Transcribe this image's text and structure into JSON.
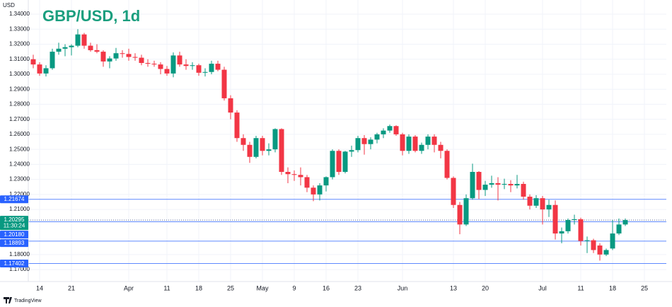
{
  "chart_data": {
    "type": "candlestick",
    "title": "GBP/USD, 1d",
    "y_label": "USD",
    "source": "TradingView",
    "up_color": "#089981",
    "down_color": "#f23645",
    "level_color": "#2962ff",
    "grid": true,
    "ylim": [
      1.1625,
      1.348
    ],
    "yticks": [
      {
        "value": 1.34,
        "label": "1.34000"
      },
      {
        "value": 1.33,
        "label": "1.33000"
      },
      {
        "value": 1.32,
        "label": "1.32000"
      },
      {
        "value": 1.31,
        "label": "1.31000"
      },
      {
        "value": 1.3,
        "label": "1.30000"
      },
      {
        "value": 1.29,
        "label": "1.29000"
      },
      {
        "value": 1.28,
        "label": "1.28000"
      },
      {
        "value": 1.27,
        "label": "1.27000"
      },
      {
        "value": 1.26,
        "label": "1.26000"
      },
      {
        "value": 1.25,
        "label": "1.25000"
      },
      {
        "value": 1.24,
        "label": "1.24000"
      },
      {
        "value": 1.23,
        "label": "1.23000"
      },
      {
        "value": 1.22,
        "label": "1.22000"
      },
      {
        "value": 1.21,
        "label": "1.21000"
      },
      {
        "value": 1.18,
        "label": "1.18000"
      },
      {
        "value": 1.17,
        "label": "1.17000"
      }
    ],
    "levels": [
      {
        "value": 1.21674,
        "label": "1.21674"
      },
      {
        "value": 1.2018,
        "label": "1.20180"
      },
      {
        "value": 1.18893,
        "label": "1.18893"
      },
      {
        "value": 1.17402,
        "label": "1.17402"
      }
    ],
    "current_price": {
      "value": 1.20295,
      "label": "1.20295",
      "time": "11:30:24"
    },
    "categories": [
      null,
      "14",
      null,
      null,
      null,
      null,
      "21",
      null,
      null,
      null,
      null,
      null,
      null,
      null,
      null,
      "Apr",
      null,
      null,
      null,
      null,
      null,
      "11",
      null,
      null,
      null,
      null,
      "18",
      null,
      null,
      null,
      null,
      "25",
      null,
      null,
      null,
      null,
      "May",
      null,
      null,
      null,
      null,
      "9",
      null,
      null,
      null,
      null,
      "16",
      null,
      null,
      null,
      null,
      "23",
      null,
      null,
      null,
      null,
      null,
      null,
      "Jun",
      null,
      null,
      null,
      null,
      null,
      null,
      null,
      "13",
      null,
      null,
      null,
      null,
      "20",
      null,
      null,
      null,
      null,
      null,
      null,
      null,
      null,
      "Jul",
      null,
      null,
      null,
      null,
      null,
      "11",
      null,
      null,
      null,
      null,
      "18",
      null,
      null,
      null,
      null,
      "25"
    ],
    "ohlc": [
      [
        1.31,
        1.313,
        1.304,
        1.3065
      ],
      [
        1.3065,
        1.308,
        1.299,
        1.3005
      ],
      [
        1.3005,
        1.306,
        1.2985,
        1.304
      ],
      [
        1.304,
        1.317,
        1.303,
        1.315
      ],
      [
        1.315,
        1.321,
        1.313,
        1.317
      ],
      [
        1.317,
        1.32,
        1.312,
        1.318
      ],
      [
        1.318,
        1.32,
        1.3125,
        1.319
      ],
      [
        1.319,
        1.33,
        1.318,
        1.3265
      ],
      [
        1.3265,
        1.3275,
        1.317,
        1.319
      ],
      [
        1.319,
        1.321,
        1.315,
        1.316
      ],
      [
        1.316,
        1.32,
        1.314,
        1.315
      ],
      [
        1.315,
        1.316,
        1.305,
        1.3085
      ],
      [
        1.3085,
        1.312,
        1.304,
        1.3105
      ],
      [
        1.3105,
        1.3175,
        1.309,
        1.314
      ],
      [
        1.314,
        1.316,
        1.311,
        1.3135
      ],
      [
        1.3135,
        1.317,
        1.309,
        1.3115
      ],
      [
        1.3115,
        1.314,
        1.309,
        1.311
      ],
      [
        1.311,
        1.313,
        1.306,
        1.3075
      ],
      [
        1.3075,
        1.31,
        1.305,
        1.307
      ],
      [
        1.307,
        1.309,
        1.305,
        1.3065
      ],
      [
        1.3065,
        1.308,
        1.3,
        1.3035
      ],
      [
        1.3035,
        1.3055,
        1.299,
        1.3005
      ],
      [
        1.3005,
        1.3145,
        1.298,
        1.3125
      ],
      [
        1.3125,
        1.315,
        1.305,
        1.3065
      ],
      [
        1.3065,
        1.31,
        1.303,
        1.3055
      ],
      [
        1.3055,
        1.308,
        1.303,
        1.306
      ],
      [
        1.306,
        1.307,
        1.299,
        1.301
      ],
      [
        1.301,
        1.304,
        1.2985,
        1.3015
      ],
      [
        1.3015,
        1.309,
        1.3,
        1.307
      ],
      [
        1.307,
        1.309,
        1.302,
        1.303
      ],
      [
        1.303,
        1.305,
        1.2825,
        1.284
      ],
      [
        1.284,
        1.286,
        1.27,
        1.2745
      ],
      [
        1.2745,
        1.276,
        1.255,
        1.2575
      ],
      [
        1.2575,
        1.26,
        1.249,
        1.253
      ],
      [
        1.253,
        1.255,
        1.241,
        1.245
      ],
      [
        1.245,
        1.259,
        1.244,
        1.2575
      ],
      [
        1.2575,
        1.259,
        1.246,
        1.249
      ],
      [
        1.249,
        1.254,
        1.246,
        1.25
      ],
      [
        1.25,
        1.264,
        1.248,
        1.2635
      ],
      [
        1.2635,
        1.264,
        1.233,
        1.235
      ],
      [
        1.235,
        1.238,
        1.2275,
        1.2335
      ],
      [
        1.2335,
        1.236,
        1.229,
        1.233
      ],
      [
        1.233,
        1.238,
        1.226,
        1.2315
      ],
      [
        1.2315,
        1.233,
        1.2215,
        1.2245
      ],
      [
        1.2245,
        1.226,
        1.2155,
        1.22
      ],
      [
        1.22,
        1.2275,
        1.216,
        1.226
      ],
      [
        1.226,
        1.232,
        1.222,
        1.2315
      ],
      [
        1.2315,
        1.25,
        1.23,
        1.249
      ],
      [
        1.249,
        1.25,
        1.233,
        1.235
      ],
      [
        1.235,
        1.249,
        1.234,
        1.2485
      ],
      [
        1.2485,
        1.2525,
        1.245,
        1.2495
      ],
      [
        1.2495,
        1.259,
        1.248,
        1.2575
      ],
      [
        1.2575,
        1.2595,
        1.2465,
        1.2535
      ],
      [
        1.2535,
        1.258,
        1.25,
        1.2565
      ],
      [
        1.2565,
        1.261,
        1.254,
        1.26
      ],
      [
        1.26,
        1.264,
        1.2575,
        1.2625
      ],
      [
        1.2625,
        1.2665,
        1.261,
        1.2655
      ],
      [
        1.2655,
        1.266,
        1.259,
        1.26
      ],
      [
        1.26,
        1.261,
        1.246,
        1.249
      ],
      [
        1.249,
        1.26,
        1.247,
        1.2585
      ],
      [
        1.2585,
        1.2595,
        1.248,
        1.249
      ],
      [
        1.249,
        1.2545,
        1.247,
        1.253
      ],
      [
        1.253,
        1.26,
        1.25,
        1.2585
      ],
      [
        1.2585,
        1.26,
        1.248,
        1.253
      ],
      [
        1.253,
        1.255,
        1.244,
        1.249
      ],
      [
        1.249,
        1.25,
        1.23,
        1.231
      ],
      [
        1.231,
        1.232,
        1.211,
        1.213
      ],
      [
        1.213,
        1.215,
        1.1935,
        1.2
      ],
      [
        1.2,
        1.22,
        1.199,
        1.2175
      ],
      [
        1.2175,
        1.2405,
        1.2165,
        1.235
      ],
      [
        1.235,
        1.2355,
        1.217,
        1.223
      ],
      [
        1.223,
        1.229,
        1.219,
        1.2265
      ],
      [
        1.2265,
        1.2325,
        1.2245,
        1.2275
      ],
      [
        1.2275,
        1.2315,
        1.216,
        1.2265
      ],
      [
        1.2265,
        1.2305,
        1.2235,
        1.227
      ],
      [
        1.227,
        1.2295,
        1.2215,
        1.226
      ],
      [
        1.226,
        1.233,
        1.224,
        1.227
      ],
      [
        1.227,
        1.2285,
        1.2165,
        1.2185
      ],
      [
        1.2185,
        1.22,
        1.21,
        1.2125
      ],
      [
        1.2125,
        1.2195,
        1.211,
        1.2175
      ],
      [
        1.2175,
        1.219,
        1.2,
        1.21
      ],
      [
        1.21,
        1.2165,
        1.205,
        1.213
      ],
      [
        1.213,
        1.216,
        1.19,
        1.194
      ],
      [
        1.194,
        1.198,
        1.1875,
        1.1955
      ],
      [
        1.1955,
        1.204,
        1.194,
        1.203
      ],
      [
        1.203,
        1.2065,
        1.2,
        1.2035
      ],
      [
        1.2035,
        1.2045,
        1.186,
        1.189
      ],
      [
        1.189,
        1.192,
        1.181,
        1.1895
      ],
      [
        1.1895,
        1.1905,
        1.181,
        1.183
      ],
      [
        1.186,
        1.1875,
        1.176,
        1.18
      ],
      [
        1.18,
        1.184,
        1.179,
        1.183
      ],
      [
        1.184,
        1.203,
        1.183,
        1.194
      ],
      [
        1.194,
        1.204,
        1.193,
        1.2
      ],
      [
        1.2,
        1.204,
        1.199,
        1.20295
      ],
      null,
      null,
      null
    ]
  }
}
